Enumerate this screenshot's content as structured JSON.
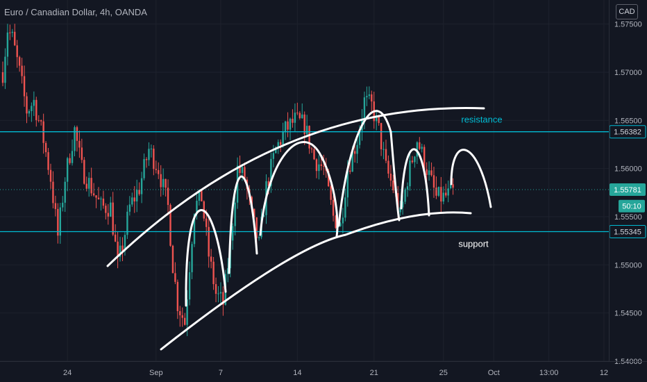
{
  "header": {
    "symbol_title": "Euro / Canadian Dollar, 4h, OANDA",
    "currency_button": "CAD"
  },
  "colors": {
    "background": "#131722",
    "up": "#26a69a",
    "down": "#ef5350",
    "drawing": "#ffffff",
    "level_line": "#00bcd4",
    "grid": "#1e222d",
    "axis_text": "#b2b5be"
  },
  "chart_data": {
    "type": "candlestick",
    "ylim": [
      1.54,
      1.5775
    ],
    "y_ticks": [
      "1.57500",
      "1.57000",
      "1.56500",
      "1.56000",
      "1.55500",
      "1.55000",
      "1.54500",
      "1.54000"
    ],
    "y_tick_values": [
      1.575,
      1.57,
      1.565,
      1.56,
      1.555,
      1.55,
      1.545,
      1.54
    ],
    "x_ticks": [
      "24",
      "Sep",
      "7",
      "14",
      "21",
      "25",
      "Oct",
      "13:00",
      "12"
    ],
    "x_tick_bars": [
      27,
      64,
      91,
      123,
      155,
      184,
      205,
      228,
      251
    ],
    "price_labels": [
      {
        "text": "1.56382",
        "value": 1.56382,
        "style": "resistance"
      },
      {
        "text": "1.55781",
        "value": 1.55781,
        "style": "current"
      },
      {
        "text": "50:10",
        "value": 1.5561,
        "style": "countdown"
      },
      {
        "text": "1.55345",
        "value": 1.55345,
        "style": "support"
      }
    ],
    "horizontal_lines": [
      {
        "label": "resistance",
        "value": 1.56382
      },
      {
        "label": "support",
        "value": 1.55345
      }
    ],
    "current_price": 1.55781,
    "annotations": [
      "resistance",
      "support"
    ],
    "anchors": [
      [
        0,
        1.57
      ],
      [
        2,
        1.5745
      ],
      [
        4,
        1.5735
      ],
      [
        7,
        1.57
      ],
      [
        10,
        1.566
      ],
      [
        13,
        1.567
      ],
      [
        17,
        1.563
      ],
      [
        20,
        1.559
      ],
      [
        23,
        1.553
      ],
      [
        26,
        1.559
      ],
      [
        30,
        1.564
      ],
      [
        33,
        1.56
      ],
      [
        37,
        1.558
      ],
      [
        41,
        1.556
      ],
      [
        45,
        1.556
      ],
      [
        48,
        1.55
      ],
      [
        50,
        1.552
      ],
      [
        53,
        1.556
      ],
      [
        57,
        1.558
      ],
      [
        61,
        1.562
      ],
      [
        65,
        1.56
      ],
      [
        69,
        1.556
      ],
      [
        71,
        1.55
      ],
      [
        73,
        1.546
      ],
      [
        76,
        1.544
      ],
      [
        80,
        1.556
      ],
      [
        83,
        1.557
      ],
      [
        86,
        1.551
      ],
      [
        89,
        1.547
      ],
      [
        92,
        1.546
      ],
      [
        95,
        1.552
      ],
      [
        98,
        1.56
      ],
      [
        101,
        1.559
      ],
      [
        104,
        1.555
      ],
      [
        107,
        1.552
      ],
      [
        110,
        1.558
      ],
      [
        114,
        1.562
      ],
      [
        118,
        1.564
      ],
      [
        122,
        1.565
      ],
      [
        126,
        1.5645
      ],
      [
        130,
        1.561
      ],
      [
        134,
        1.56
      ],
      [
        138,
        1.555
      ],
      [
        141,
        1.554
      ],
      [
        144,
        1.56
      ],
      [
        148,
        1.563
      ],
      [
        151,
        1.567
      ],
      [
        154,
        1.5665
      ],
      [
        157,
        1.564
      ],
      [
        160,
        1.56
      ],
      [
        163,
        1.558
      ],
      [
        166,
        1.555
      ],
      [
        169,
        1.559
      ],
      [
        173,
        1.563
      ],
      [
        177,
        1.56
      ],
      [
        181,
        1.557
      ],
      [
        184,
        1.557
      ],
      [
        188,
        1.5575
      ]
    ]
  }
}
